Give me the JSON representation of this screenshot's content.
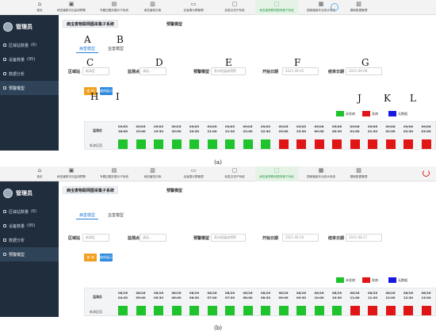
{
  "panels": [
    {
      "nav": [
        "首页",
        "病虫害数字化监测预警",
        "专题应图形展示子系统",
        "病虫害知识库",
        "全省展示屏管理",
        "信息交流子系统",
        "病虫害物联网图采集子系统",
        "国家植保专业统计系统",
        "基础数据管理"
      ],
      "user": "管理员",
      "menu": [
        {
          "label": "区域站数量",
          "count": "(6)"
        },
        {
          "label": "设备数量",
          "count": "(95)"
        },
        {
          "label": "数据分析",
          "count": ""
        },
        {
          "label": "预警模型",
          "count": ""
        }
      ],
      "page_title": "病虫害物联网图采集子系统",
      "page_tab": "预警模型",
      "tabs": [
        "病害模型",
        "虫害模型"
      ],
      "filters": {
        "region_label": "区域站",
        "region": "新津区",
        "site_label": "监测点",
        "site": "请选...",
        "model_label": "预警模型",
        "model": "贵州稻瘟病预警",
        "start_label": "开始日期",
        "start": "2021-09-05",
        "end_label": "结束日期",
        "end": "2021-09-08"
      },
      "btn_query": "查 询",
      "btn_chart": "曲线展示",
      "legend": [
        {
          "label": "未发病",
          "color": "#1fc32c"
        },
        {
          "label": "发病",
          "color": "#e01515"
        },
        {
          "label": "无数据",
          "color": "#1818e0"
        }
      ],
      "col_header": "监测点",
      "row_label": "新津区稻",
      "times": [
        [
          "09/05",
          "16:00"
        ],
        [
          "09/05",
          "19:00"
        ],
        [
          "09/05",
          "19:30"
        ],
        [
          "09/05",
          "20:00"
        ],
        [
          "09/05",
          "20:30"
        ],
        [
          "09/05",
          "21:00"
        ],
        [
          "09/05",
          "21:30"
        ],
        [
          "09/05",
          "22:00"
        ],
        [
          "09/05",
          "22:30"
        ],
        [
          "09/05",
          "23:00"
        ],
        [
          "09/05",
          "23:30"
        ],
        [
          "09/06",
          "00:00"
        ],
        [
          "09/06",
          "00:30"
        ],
        [
          "09/06",
          "01:00"
        ],
        [
          "09/06",
          "01:30"
        ],
        [
          "09/06",
          "02:00"
        ],
        [
          "09/06",
          "02:30"
        ],
        [
          "09/06",
          "03:00"
        ]
      ],
      "status": [
        "g",
        "g",
        "g",
        "g",
        "g",
        "g",
        "g",
        "g",
        "g",
        "r",
        "r",
        "r",
        "r",
        "r",
        "r",
        "r",
        "r",
        "r"
      ],
      "markers": [
        "A",
        "B",
        "C",
        "D",
        "E",
        "F",
        "G",
        "H",
        "I",
        "J",
        "K",
        "L"
      ],
      "caption": "(a)"
    },
    {
      "nav": [
        "首页",
        "病虫害数字化监测预警",
        "专题应图形展示子系统",
        "病虫害知识库",
        "全省展示屏管理",
        "信息交流子系统",
        "病虫害物联网图采集子系统",
        "国家植保专业统计系统",
        "基础数据管理"
      ],
      "user": "管理员",
      "menu": [
        {
          "label": "区域站数量",
          "count": "(6)"
        },
        {
          "label": "设备数量",
          "count": "(95)"
        },
        {
          "label": "数据分析",
          "count": ""
        },
        {
          "label": "预警模型",
          "count": ""
        }
      ],
      "page_title": "病虫害物联网图采集子系统",
      "page_tab": "预警模型",
      "tabs": [
        "病害模型",
        "虫害模型"
      ],
      "filters": {
        "region_label": "区域站",
        "region": "新津区",
        "site_label": "监测点",
        "site": "请选...",
        "model_label": "预警模型",
        "model": "贵州稻瘟病预警",
        "start_label": "开始日期",
        "start": "2021-08-26",
        "end_label": "结束日期",
        "end": "2021-08-27"
      },
      "btn_query": "查 询",
      "btn_chart": "曲线展示",
      "legend": [
        {
          "label": "未发病",
          "color": "#1fc32c"
        },
        {
          "label": "发病",
          "color": "#e01515"
        },
        {
          "label": "无数据",
          "color": "#1818e0"
        }
      ],
      "col_header": "监测点",
      "row_label": "新津区稻",
      "times": [
        [
          "08/26",
          "04:30"
        ],
        [
          "08/26",
          "05:00"
        ],
        [
          "08/26",
          "05:30"
        ],
        [
          "08/26",
          "06:00"
        ],
        [
          "08/26",
          "06:30"
        ],
        [
          "08/26",
          "07:00"
        ],
        [
          "08/26",
          "07:30"
        ],
        [
          "08/26",
          "08:00"
        ],
        [
          "08/26",
          "08:30"
        ],
        [
          "08/26",
          "09:00"
        ],
        [
          "08/26",
          "09:30"
        ],
        [
          "08/26",
          "10:00"
        ],
        [
          "08/26",
          "10:30"
        ],
        [
          "08/26",
          "11:00"
        ],
        [
          "08/26",
          "11:30"
        ],
        [
          "08/26",
          "12:00"
        ],
        [
          "08/26",
          "12:30"
        ],
        [
          "08/26",
          "13:00"
        ]
      ],
      "status": [
        "g",
        "g",
        "g",
        "g",
        "g",
        "g",
        "g",
        "g",
        "g",
        "g",
        "g",
        "g",
        "g",
        "r",
        "r",
        "r",
        "r",
        "r"
      ],
      "markers": [],
      "caption": "(b)"
    }
  ]
}
